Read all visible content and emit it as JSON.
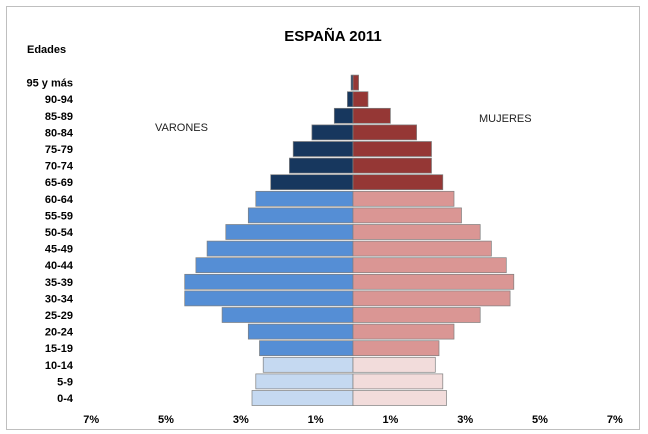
{
  "chart_data": {
    "type": "bar",
    "orientation": "horizontal",
    "style": "population-pyramid",
    "title": "ESPAÑA 2011",
    "ylabel": "Edades",
    "categories": [
      "0-4",
      "5-9",
      "10-14",
      "15-19",
      "20-24",
      "25-29",
      "30-34",
      "35-39",
      "40-44",
      "45-49",
      "50-54",
      "55-59",
      "60-64",
      "65-69",
      "70-74",
      "75-79",
      "80-84",
      "85-89",
      "90-94",
      "95 y más"
    ],
    "series": [
      {
        "name": "VARONES",
        "values": [
          2.7,
          2.6,
          2.4,
          2.5,
          2.8,
          3.5,
          4.5,
          4.5,
          4.2,
          3.9,
          3.4,
          2.8,
          2.6,
          2.2,
          1.7,
          1.6,
          1.1,
          0.5,
          0.15,
          0.05
        ]
      },
      {
        "name": "MUJERES",
        "values": [
          2.5,
          2.4,
          2.2,
          2.3,
          2.7,
          3.4,
          4.2,
          4.3,
          4.1,
          3.7,
          3.4,
          2.9,
          2.7,
          2.4,
          2.1,
          2.1,
          1.7,
          1.0,
          0.4,
          0.15
        ]
      }
    ],
    "xlim": [
      -7,
      7
    ],
    "xtick_labels": [
      "7%",
      "5%",
      "3%",
      "1%",
      "1%",
      "3%",
      "5%",
      "7%"
    ],
    "colors": {
      "male_young": "#c5d9f1",
      "male_adult": "#558ed5",
      "male_old": "#17375e",
      "female_young": "#f2dcdb",
      "female_adult": "#da9694",
      "female_old": "#953735",
      "bar_outline": "#7f7f7f"
    },
    "age_groups_bounds": {
      "young_max_index": 2,
      "adult_max_index": 12
    },
    "grid": false,
    "legend": "none"
  }
}
